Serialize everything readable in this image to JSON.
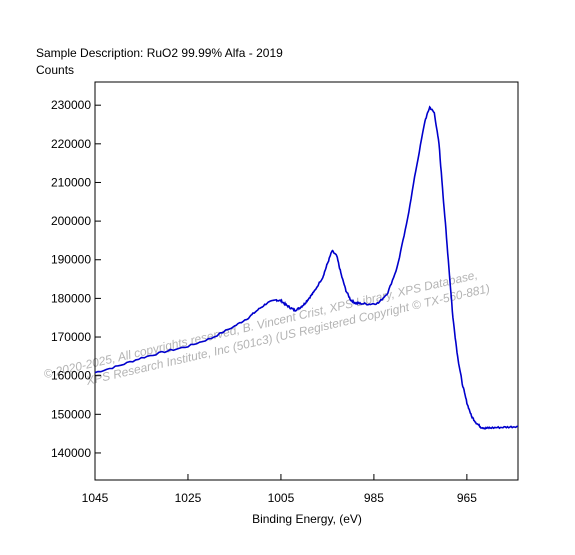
{
  "header": {
    "description": "Sample Description:  RuO2 99.99% Alfa - 2019",
    "ylabel": "Counts"
  },
  "watermark": {
    "line1": "© 2020-2025,  All copyrights reserved,   B. Vincent Crist,  XPS Library,  XPS Database,",
    "line2": "XPS Research Institute, Inc (501c3)   (US Registered Copyright © TX-560-881)"
  },
  "chart_data": {
    "type": "line",
    "title": "Sample Description:  RuO2 99.99% Alfa - 2019",
    "xlabel": "Binding Energy, (eV)",
    "ylabel": "Counts",
    "xlim": [
      1045,
      954
    ],
    "ylim": [
      133000,
      236000
    ],
    "x_reversed": true,
    "x_ticks": [
      1045,
      1025,
      1005,
      985,
      965
    ],
    "y_ticks": [
      140000,
      150000,
      160000,
      170000,
      180000,
      190000,
      200000,
      210000,
      220000,
      230000
    ],
    "x_tick_labels": [
      "1045",
      "1025",
      "1005",
      "985",
      "965"
    ],
    "y_tick_labels": [
      "140000",
      "150000",
      "160000",
      "170000",
      "180000",
      "190000",
      "200000",
      "210000",
      "220000",
      "230000"
    ],
    "grid": false,
    "line_color": "#0000cc",
    "series": [
      {
        "x": [
          1045,
          1040,
          1035,
          1030,
          1025,
          1020,
          1015,
          1012,
          1010,
          1008,
          1006,
          1005,
          1004,
          1003,
          1002,
          1001,
          1000,
          999,
          998,
          996,
          995,
          994,
          993,
          992,
          991,
          990,
          989,
          988,
          986,
          984,
          982,
          980,
          978,
          976,
          974,
          973,
          972,
          971,
          970,
          969,
          968,
          967,
          966,
          965,
          964,
          963,
          962,
          961,
          960,
          958,
          956,
          954
        ],
        "values": [
          160800,
          162500,
          164600,
          166200,
          167600,
          169700,
          172800,
          175000,
          177000,
          178800,
          179600,
          179400,
          178400,
          177600,
          176900,
          177500,
          178500,
          180000,
          181500,
          185500,
          189000,
          192300,
          191000,
          186000,
          182000,
          179600,
          178800,
          178700,
          178500,
          178800,
          181500,
          188000,
          199000,
          213000,
          226000,
          229500,
          228000,
          220000,
          205000,
          190000,
          175000,
          165000,
          158000,
          153000,
          149500,
          147800,
          146700,
          146400,
          146500,
          146600,
          146700,
          146900
        ]
      }
    ]
  }
}
